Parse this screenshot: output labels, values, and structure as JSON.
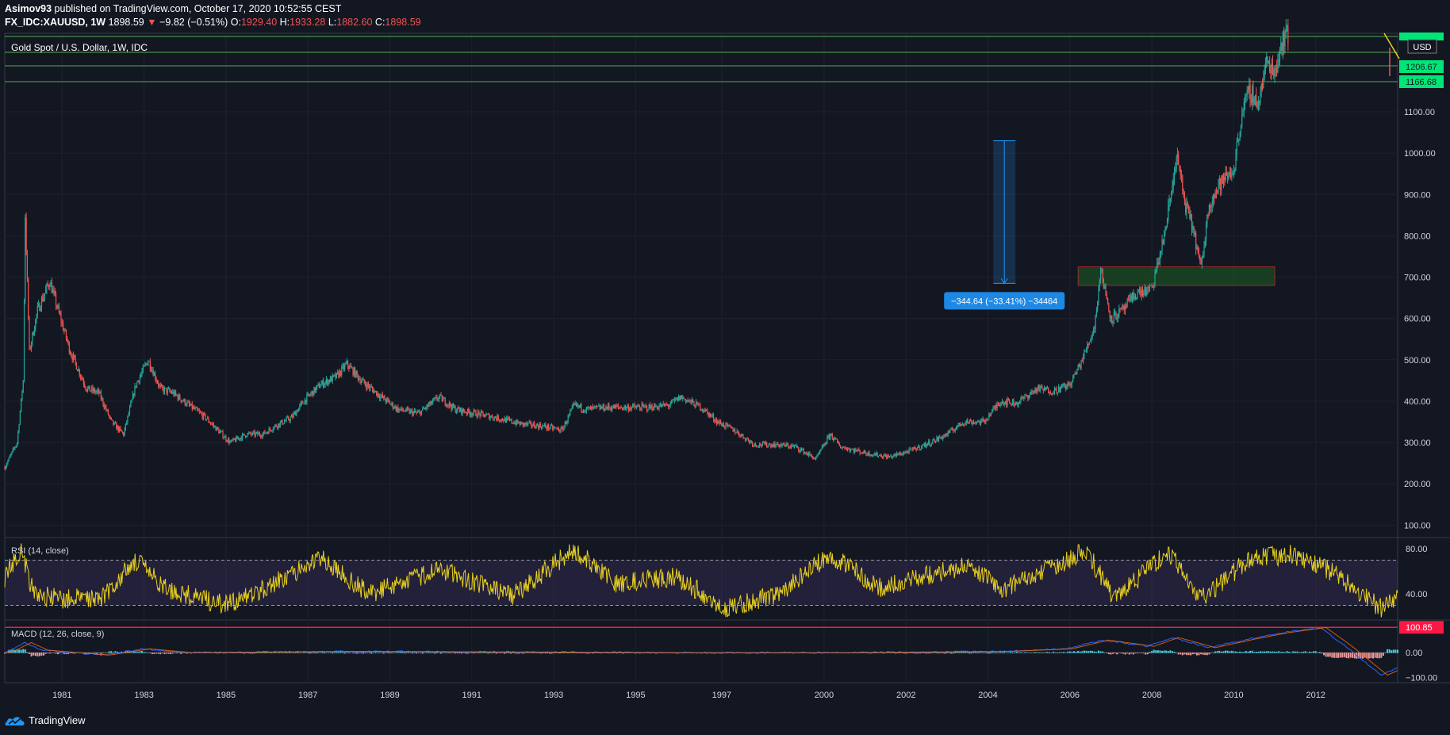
{
  "header": {
    "publisher": "Asimov93",
    "published_text": " published on TradingView.com, October 17, 2020 10:52:55 CEST",
    "symbol": "FX_IDC:XAUUSD, 1W",
    "last": "1898.59",
    "change": "−9.82 (−0.51%)",
    "o_label": "O:",
    "o": "1929.40",
    "h_label": "H:",
    "h": "1933.28",
    "l_label": "L:",
    "l": "1882.60",
    "c_label": "C:",
    "c": "1898.59"
  },
  "footer": {
    "brand": "TradingView"
  },
  "colors": {
    "background": "#131722",
    "up": "#26a69a",
    "down": "#ef5350",
    "hline": "#4caf50",
    "rsi": "#e8d01d",
    "macd_line": "#2962ff",
    "signal_line": "#ff6d00",
    "measure": "#2196f3",
    "zone": "#1b5e20"
  },
  "chart_data": [
    {
      "type": "candlestick",
      "title": "Gold Spot / U.S. Dollar, 1W, IDC",
      "currency": "USD",
      "x_ticks": [
        "1981",
        "1983",
        "1985",
        "1987",
        "1989",
        "1991",
        "1993",
        "1995",
        "1997",
        "2000",
        "2002",
        "2004",
        "2006",
        "2008",
        "2010",
        "2012"
      ],
      "xlim": [
        1979.6,
        2013.6
      ],
      "y_ticks": [
        "100.00",
        "200.00",
        "300.00",
        "400.00",
        "500.00",
        "600.00",
        "700.00",
        "800.00",
        "900.00",
        "1000.00",
        "1100.00"
      ],
      "ylim": [
        70,
        1290
      ],
      "price_path": [
        [
          1979.6,
          240
        ],
        [
          1979.9,
          300
        ],
        [
          1980.05,
          450
        ],
        [
          1980.1,
          850
        ],
        [
          1980.2,
          520
        ],
        [
          1980.4,
          620
        ],
        [
          1980.7,
          690
        ],
        [
          1980.9,
          620
        ],
        [
          1981.2,
          520
        ],
        [
          1981.6,
          430
        ],
        [
          1981.9,
          420
        ],
        [
          1982.2,
          350
        ],
        [
          1982.5,
          320
        ],
        [
          1982.8,
          440
        ],
        [
          1983.1,
          500
        ],
        [
          1983.4,
          430
        ],
        [
          1983.7,
          420
        ],
        [
          1984.1,
          390
        ],
        [
          1984.5,
          360
        ],
        [
          1984.8,
          330
        ],
        [
          1985.1,
          300
        ],
        [
          1985.5,
          320
        ],
        [
          1985.9,
          320
        ],
        [
          1986.2,
          340
        ],
        [
          1986.6,
          360
        ],
        [
          1986.9,
          400
        ],
        [
          1987.3,
          440
        ],
        [
          1987.7,
          460
        ],
        [
          1987.95,
          490
        ],
        [
          1988.3,
          450
        ],
        [
          1988.8,
          410
        ],
        [
          1989.2,
          380
        ],
        [
          1989.7,
          370
        ],
        [
          1990.2,
          410
        ],
        [
          1990.6,
          380
        ],
        [
          1991.1,
          370
        ],
        [
          1991.6,
          360
        ],
        [
          1992.2,
          345
        ],
        [
          1992.7,
          340
        ],
        [
          1993.2,
          330
        ],
        [
          1993.5,
          390
        ],
        [
          1993.8,
          380
        ],
        [
          1994.3,
          385
        ],
        [
          1994.8,
          385
        ],
        [
          1995.3,
          385
        ],
        [
          1995.8,
          390
        ],
        [
          1996.1,
          410
        ],
        [
          1996.6,
          385
        ],
        [
          1997.0,
          350
        ],
        [
          1997.4,
          330
        ],
        [
          1997.9,
          295
        ],
        [
          1998.4,
          295
        ],
        [
          1998.9,
          290
        ],
        [
          1999.4,
          260
        ],
        [
          1999.75,
          320
        ],
        [
          2000.0,
          290
        ],
        [
          2000.6,
          275
        ],
        [
          2001.2,
          265
        ],
        [
          2001.7,
          280
        ],
        [
          2002.2,
          300
        ],
        [
          2002.6,
          320
        ],
        [
          2003.0,
          350
        ],
        [
          2003.5,
          350
        ],
        [
          2003.9,
          400
        ],
        [
          2004.3,
          395
        ],
        [
          2004.8,
          430
        ],
        [
          2005.2,
          425
        ],
        [
          2005.6,
          440
        ],
        [
          2005.9,
          500
        ],
        [
          2006.2,
          580
        ],
        [
          2006.35,
          720
        ],
        [
          2006.6,
          600
        ],
        [
          2006.9,
          620
        ],
        [
          2007.2,
          660
        ],
        [
          2007.6,
          670
        ],
        [
          2007.9,
          800
        ],
        [
          2008.1,
          920
        ],
        [
          2008.2,
          1000
        ],
        [
          2008.4,
          880
        ],
        [
          2008.6,
          820
        ],
        [
          2008.8,
          720
        ],
        [
          2009.0,
          880
        ],
        [
          2009.3,
          930
        ],
        [
          2009.6,
          960
        ],
        [
          2009.8,
          1100
        ],
        [
          2010.0,
          1150
        ],
        [
          2010.2,
          1120
        ],
        [
          2010.4,
          1220
        ],
        [
          2010.6,
          1200
        ],
        [
          2010.8,
          1280
        ],
        [
          2011.0,
          1290
        ]
      ],
      "horizontal_lines": [
        1206.67,
        1166.68
      ],
      "horizontal_line_labels": [
        "1206.67",
        "1166.68"
      ],
      "zone": {
        "x": [
          2005.8,
          2010.6
        ],
        "y": [
          680,
          725
        ]
      },
      "measure": {
        "x": 2004.0,
        "from": 1030,
        "to": 685,
        "label": "−344.64 (−33.41%) −34464"
      }
    },
    {
      "type": "line",
      "title": "RSI (14, close)",
      "y_ticks": [
        "40.00",
        "80.00"
      ],
      "levels": [
        70,
        30
      ],
      "ylim": [
        17,
        90
      ],
      "path": [
        [
          1979.6,
          55
        ],
        [
          1980.0,
          80
        ],
        [
          1980.3,
          40
        ],
        [
          1981.0,
          35
        ],
        [
          1982.0,
          38
        ],
        [
          1982.8,
          70
        ],
        [
          1983.5,
          45
        ],
        [
          1985.0,
          30
        ],
        [
          1986.5,
          55
        ],
        [
          1987.3,
          72
        ],
        [
          1988.5,
          40
        ],
        [
          1990.2,
          62
        ],
        [
          1992.0,
          38
        ],
        [
          1993.5,
          80
        ],
        [
          1994.5,
          50
        ],
        [
          1996.0,
          55
        ],
        [
          1997.2,
          28
        ],
        [
          1998.5,
          40
        ],
        [
          1999.75,
          75
        ],
        [
          2001.0,
          45
        ],
        [
          2003.0,
          65
        ],
        [
          2004.0,
          45
        ],
        [
          2006.0,
          78
        ],
        [
          2006.7,
          35
        ],
        [
          2008.0,
          78
        ],
        [
          2008.8,
          35
        ],
        [
          2010.0,
          72
        ],
        [
          2011.0,
          75
        ],
        [
          2012.0,
          60
        ],
        [
          2013.2,
          27
        ],
        [
          2013.6,
          40
        ]
      ]
    },
    {
      "type": "macd",
      "title": "MACD (12, 26, close, 9)",
      "y_ticks": [
        "100.85",
        "0.00",
        "−100.00"
      ],
      "ylim": [
        -120,
        130
      ],
      "signal_level": 100.85,
      "path": [
        [
          1979.6,
          0
        ],
        [
          1980.1,
          40
        ],
        [
          1980.5,
          10
        ],
        [
          1982.0,
          -10
        ],
        [
          1983.0,
          15
        ],
        [
          1984.0,
          0
        ],
        [
          1988.0,
          5
        ],
        [
          1996.0,
          0
        ],
        [
          2000.0,
          0
        ],
        [
          2004.0,
          5
        ],
        [
          2005.5,
          15
        ],
        [
          2006.4,
          50
        ],
        [
          2007.5,
          25
        ],
        [
          2008.1,
          60
        ],
        [
          2009.0,
          20
        ],
        [
          2010.0,
          55
        ],
        [
          2010.8,
          80
        ],
        [
          2011.7,
          100
        ],
        [
          2012.3,
          30
        ],
        [
          2013.2,
          -90
        ],
        [
          2013.6,
          -60
        ]
      ]
    }
  ]
}
